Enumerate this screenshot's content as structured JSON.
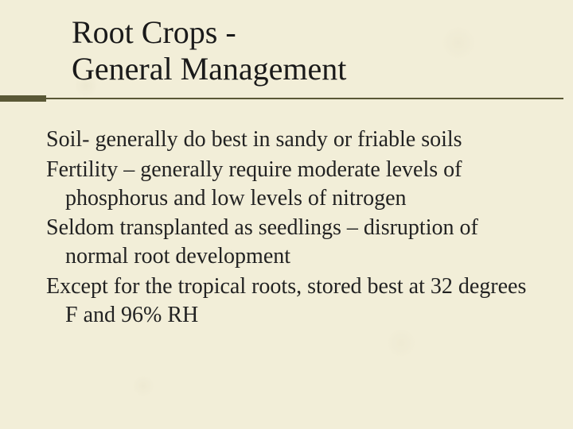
{
  "slide": {
    "background_color": "#f2eed8",
    "accent_color": "#5a5836",
    "text_color": "#1a1a1a",
    "title_line1": "Root Crops -",
    "title_line2": "General Management",
    "title_fontsize": 40,
    "body_fontsize": 28,
    "bullets": [
      "Soil- generally do best in sandy or friable soils",
      "Fertility – generally require moderate levels of phosphorus and low levels of nitrogen",
      "Seldom transplanted as seedlings – disruption of normal root development",
      "Except for the tropical roots, stored best at 32 degrees F and 96% RH"
    ]
  }
}
